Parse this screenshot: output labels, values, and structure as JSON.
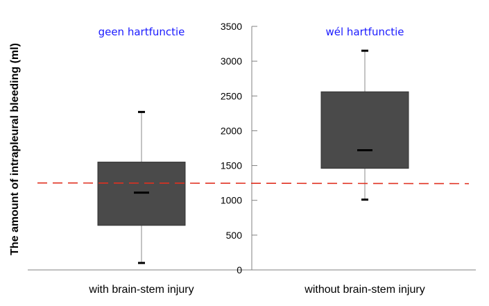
{
  "chart_data": {
    "type": "boxplot",
    "title": "",
    "xlabel": "",
    "ylabel": "The amount of intrapleural bleeding (ml)",
    "ylim": [
      0,
      3500
    ],
    "yticks": [
      0,
      500,
      1000,
      1500,
      2000,
      2500,
      3000,
      3500
    ],
    "grid": false,
    "categories": [
      "with brain-stem injury",
      "without brain-stem injury"
    ],
    "boxes": [
      {
        "category": "with brain-stem injury",
        "min": 100,
        "q1": 640,
        "median": 1110,
        "q3": 1550,
        "max": 2270
      },
      {
        "category": "without brain-stem injury",
        "min": 1010,
        "q1": 1460,
        "median": 1720,
        "q3": 2560,
        "max": 3150
      }
    ],
    "reference_line": {
      "value": 1250,
      "style": "dashed",
      "color": "#e03020"
    },
    "annotations": [
      {
        "text": "geen hartfunctie",
        "category": "with brain-stem injury"
      },
      {
        "text": "wél hartfunctie",
        "category": "without brain-stem injury"
      }
    ],
    "colors": {
      "box": "#4a4a4a",
      "annotation": "#1a1aff",
      "axis": "#808080"
    }
  }
}
